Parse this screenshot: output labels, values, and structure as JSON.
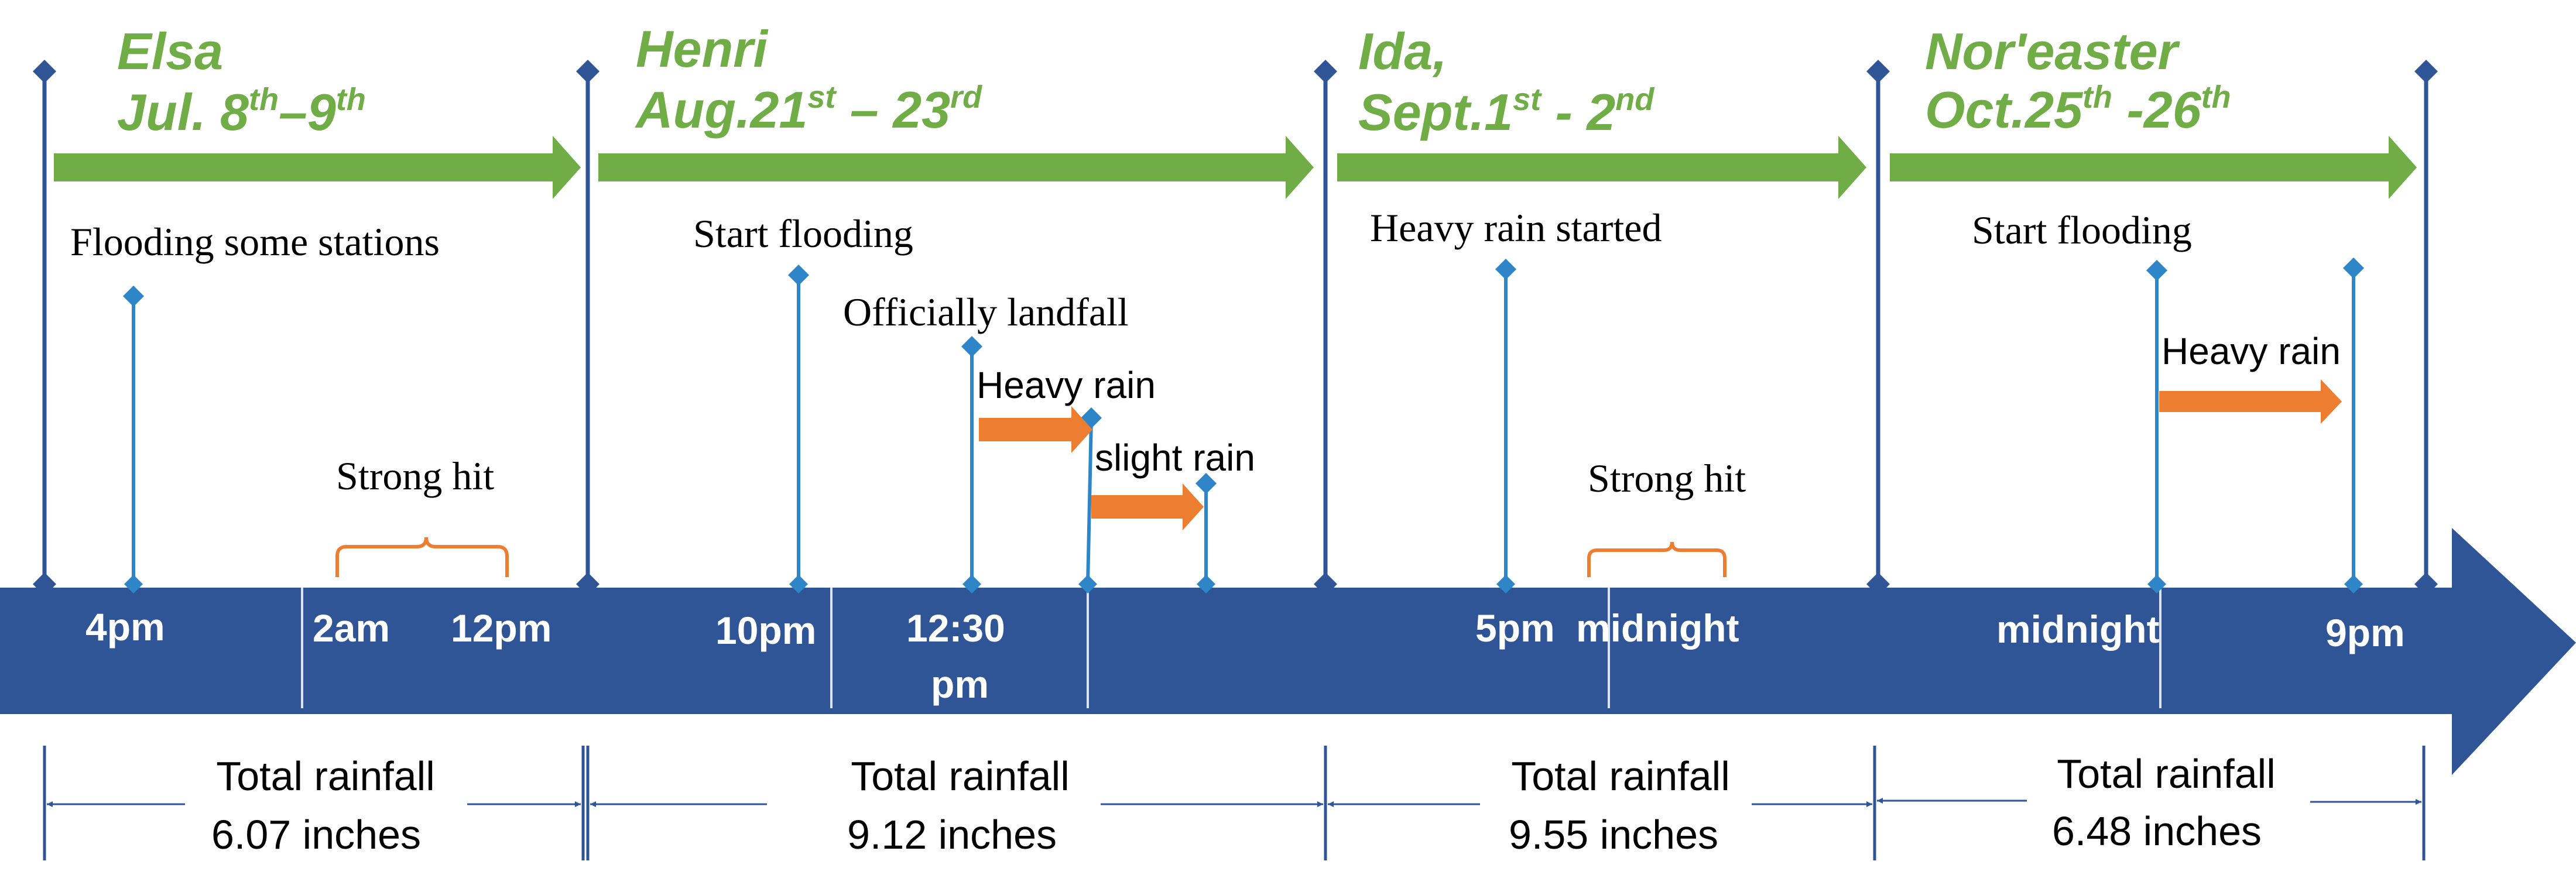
{
  "colors": {
    "band": "#2F5597",
    "storm_arrow": "#70AD47",
    "event_arrow": "#ED7D31",
    "separator": "#2F5597",
    "event_line": "#2E86C9",
    "bracket": "#ED7D31",
    "measure": "#2F5597"
  },
  "storms": [
    {
      "name": "Elsa",
      "date": {
        "base1": "Jul. 8",
        "sup1": "th",
        "mid": "–9",
        "sup2": "th",
        "tail": ""
      }
    },
    {
      "name": "Henri",
      "date": {
        "base1": "Aug.21",
        "sup1": "st",
        "mid": " – 23",
        "sup2": "rd",
        "tail": ""
      }
    },
    {
      "name": "Ida,",
      "date": {
        "base1": "Sept.1",
        "sup1": "st",
        "mid": " - 2",
        "sup2": "nd",
        "tail": ""
      }
    },
    {
      "name": "Nor'easter",
      "date": {
        "base1": "Oct.25",
        "sup1": "th",
        "mid": " -26",
        "sup2": "th",
        "tail": ""
      }
    }
  ],
  "events": {
    "elsa_flooding": "Flooding some stations",
    "elsa_strong_hit": "Strong hit",
    "henri_start_flooding": "Start flooding",
    "henri_landfall": "Officially landfall",
    "henri_heavy_rain": "Heavy rain",
    "henri_slight_rain": "slight rain",
    "ida_heavy_rain_started": "Heavy rain started",
    "ida_strong_hit": "Strong hit",
    "noreaster_start_flooding": "Start flooding",
    "noreaster_heavy_rain": "Heavy rain"
  },
  "times": {
    "t_4pm": "4pm",
    "t_2am": "2am",
    "t_12pm": "12pm",
    "t_10pm": "10pm",
    "t_1230": "12:30",
    "t_1230_pm": "pm",
    "t_5pm": "5pm",
    "t_midnight_ida": "midnight",
    "t_midnight_noreaster": "midnight",
    "t_9pm": "9pm"
  },
  "rainfall": [
    {
      "label": "Total rainfall",
      "amount": "6.07 inches"
    },
    {
      "label": "Total rainfall",
      "amount": "9.12 inches"
    },
    {
      "label": "Total rainfall",
      "amount": "9.55 inches"
    },
    {
      "label": "Total rainfall",
      "amount": "6.48 inches"
    }
  ]
}
